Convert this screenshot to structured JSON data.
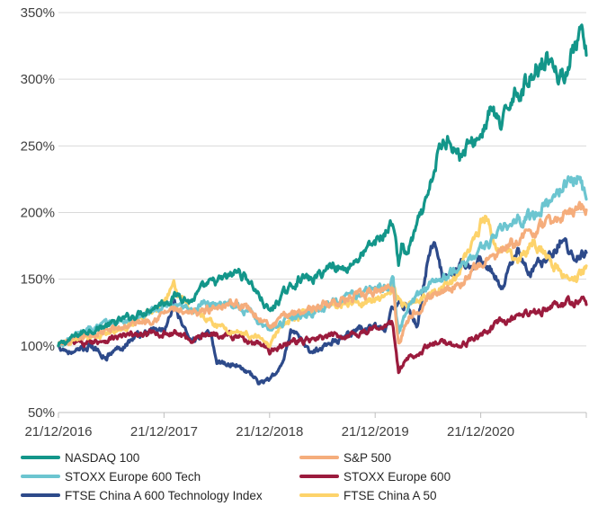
{
  "chart_data": {
    "type": "line",
    "title": "",
    "xlabel": "",
    "ylabel": "",
    "ylim": [
      50,
      350
    ],
    "y_ticks": [
      {
        "value": 50,
        "label": "50%"
      },
      {
        "value": 100,
        "label": "100%"
      },
      {
        "value": 150,
        "label": "150%"
      },
      {
        "value": 200,
        "label": "200%"
      },
      {
        "value": 250,
        "label": "250%"
      },
      {
        "value": 300,
        "label": "300%"
      },
      {
        "value": 350,
        "label": "350%"
      }
    ],
    "x_ticks": [
      "21/12/2016",
      "21/12/2017",
      "21/12/2018",
      "21/12/2019",
      "21/12/2020"
    ],
    "x_end_year": 5.0,
    "grid": "horizontal",
    "legend": "bottom",
    "series": [
      {
        "name": "NASDAQ 100",
        "color": "#13968a",
        "points": [
          [
            0,
            100
          ],
          [
            0.25,
            111
          ],
          [
            0.5,
            116
          ],
          [
            0.75,
            124
          ],
          [
            1.0,
            133
          ],
          [
            1.15,
            139
          ],
          [
            1.25,
            133
          ],
          [
            1.4,
            145
          ],
          [
            1.6,
            151
          ],
          [
            1.7,
            156
          ],
          [
            1.8,
            150
          ],
          [
            1.9,
            138
          ],
          [
            2.0,
            125
          ],
          [
            2.1,
            136
          ],
          [
            2.3,
            152
          ],
          [
            2.4,
            149
          ],
          [
            2.5,
            155
          ],
          [
            2.6,
            162
          ],
          [
            2.7,
            157
          ],
          [
            2.9,
            170
          ],
          [
            3.1,
            185
          ],
          [
            3.17,
            194
          ],
          [
            3.22,
            160
          ],
          [
            3.25,
            176
          ],
          [
            3.3,
            168
          ],
          [
            3.4,
            190
          ],
          [
            3.5,
            210
          ],
          [
            3.6,
            245
          ],
          [
            3.7,
            258
          ],
          [
            3.8,
            243
          ],
          [
            4.0,
            258
          ],
          [
            4.1,
            278
          ],
          [
            4.2,
            262
          ],
          [
            4.3,
            290
          ],
          [
            4.4,
            293
          ],
          [
            4.6,
            318
          ],
          [
            4.7,
            312
          ],
          [
            4.75,
            298
          ],
          [
            4.85,
            316
          ],
          [
            4.95,
            332
          ],
          [
            5.0,
            318
          ]
        ]
      },
      {
        "name": "S&P 500",
        "color": "#f5ad7c",
        "points": [
          [
            0,
            100
          ],
          [
            0.3,
            108
          ],
          [
            0.6,
            114
          ],
          [
            0.9,
            121
          ],
          [
            1.1,
            128
          ],
          [
            1.2,
            122
          ],
          [
            1.4,
            127
          ],
          [
            1.6,
            133
          ],
          [
            1.75,
            131
          ],
          [
            1.95,
            118
          ],
          [
            2.0,
            113
          ],
          [
            2.2,
            125
          ],
          [
            2.4,
            128
          ],
          [
            2.6,
            133
          ],
          [
            2.8,
            136
          ],
          [
            3.0,
            140
          ],
          [
            3.17,
            146
          ],
          [
            3.22,
            100
          ],
          [
            3.3,
            120
          ],
          [
            3.5,
            136
          ],
          [
            3.7,
            145
          ],
          [
            3.8,
            145
          ],
          [
            4.0,
            162
          ],
          [
            4.2,
            170
          ],
          [
            4.4,
            182
          ],
          [
            4.6,
            190
          ],
          [
            4.8,
            198
          ],
          [
            4.95,
            206
          ],
          [
            5.0,
            202
          ]
        ]
      },
      {
        "name": "STOXX Europe 600 Tech",
        "color": "#6cc5d0",
        "points": [
          [
            0,
            100
          ],
          [
            0.25,
            112
          ],
          [
            0.5,
            117
          ],
          [
            0.75,
            121
          ],
          [
            1.0,
            129
          ],
          [
            1.2,
            127
          ],
          [
            1.4,
            131
          ],
          [
            1.6,
            134
          ],
          [
            1.8,
            125
          ],
          [
            2.0,
            112
          ],
          [
            2.2,
            122
          ],
          [
            2.4,
            125
          ],
          [
            2.6,
            133
          ],
          [
            2.9,
            140
          ],
          [
            3.1,
            145
          ],
          [
            3.17,
            148
          ],
          [
            3.22,
            108
          ],
          [
            3.3,
            128
          ],
          [
            3.5,
            146
          ],
          [
            3.7,
            153
          ],
          [
            3.9,
            165
          ],
          [
            4.1,
            180
          ],
          [
            4.3,
            192
          ],
          [
            4.5,
            198
          ],
          [
            4.7,
            212
          ],
          [
            4.85,
            225
          ],
          [
            4.92,
            228
          ],
          [
            5.0,
            210
          ]
        ]
      },
      {
        "name": "STOXX Europe 600",
        "color": "#9b1b3d",
        "points": [
          [
            0,
            100
          ],
          [
            0.3,
            103
          ],
          [
            0.6,
            107
          ],
          [
            0.9,
            109
          ],
          [
            1.1,
            110
          ],
          [
            1.25,
            105
          ],
          [
            1.5,
            110
          ],
          [
            1.7,
            107
          ],
          [
            1.9,
            102
          ],
          [
            2.0,
            96
          ],
          [
            2.2,
            103
          ],
          [
            2.4,
            104
          ],
          [
            2.6,
            107
          ],
          [
            2.8,
            109
          ],
          [
            3.0,
            113
          ],
          [
            3.17,
            116
          ],
          [
            3.22,
            80
          ],
          [
            3.3,
            90
          ],
          [
            3.5,
            100
          ],
          [
            3.7,
            103
          ],
          [
            3.8,
            100
          ],
          [
            4.0,
            108
          ],
          [
            4.2,
            118
          ],
          [
            4.4,
            122
          ],
          [
            4.6,
            128
          ],
          [
            4.8,
            131
          ],
          [
            4.95,
            135
          ],
          [
            5.0,
            131
          ]
        ]
      },
      {
        "name": "FTSE China A 600 Technology  Index",
        "color": "#2d4a8a",
        "points": [
          [
            0,
            100
          ],
          [
            0.15,
            94
          ],
          [
            0.3,
            100
          ],
          [
            0.45,
            92
          ],
          [
            0.6,
            100
          ],
          [
            0.75,
            108
          ],
          [
            0.9,
            112
          ],
          [
            1.0,
            112
          ],
          [
            1.1,
            130
          ],
          [
            1.2,
            110
          ],
          [
            1.3,
            105
          ],
          [
            1.45,
            108
          ],
          [
            1.5,
            88
          ],
          [
            1.7,
            86
          ],
          [
            1.8,
            80
          ],
          [
            1.9,
            72
          ],
          [
            2.0,
            75
          ],
          [
            2.1,
            82
          ],
          [
            2.2,
            112
          ],
          [
            2.3,
            103
          ],
          [
            2.4,
            95
          ],
          [
            2.5,
            100
          ],
          [
            2.65,
            105
          ],
          [
            2.8,
            112
          ],
          [
            3.0,
            115
          ],
          [
            3.1,
            112
          ],
          [
            3.15,
            128
          ],
          [
            3.3,
            130
          ],
          [
            3.4,
            115
          ],
          [
            3.5,
            165
          ],
          [
            3.55,
            178
          ],
          [
            3.65,
            150
          ],
          [
            3.8,
            162
          ],
          [
            4.0,
            165
          ],
          [
            4.1,
            155
          ],
          [
            4.2,
            145
          ],
          [
            4.3,
            160
          ],
          [
            4.35,
            175
          ],
          [
            4.45,
            152
          ],
          [
            4.6,
            165
          ],
          [
            4.75,
            178
          ],
          [
            4.9,
            168
          ],
          [
            5.0,
            170
          ]
        ]
      },
      {
        "name": "FTSE China A 50",
        "color": "#fdd36b",
        "points": [
          [
            0,
            100
          ],
          [
            0.2,
            105
          ],
          [
            0.4,
            108
          ],
          [
            0.6,
            112
          ],
          [
            0.8,
            122
          ],
          [
            1.0,
            132
          ],
          [
            1.1,
            145
          ],
          [
            1.2,
            130
          ],
          [
            1.3,
            125
          ],
          [
            1.45,
            118
          ],
          [
            1.6,
            112
          ],
          [
            1.75,
            110
          ],
          [
            1.9,
            105
          ],
          [
            2.0,
            100
          ],
          [
            2.1,
            115
          ],
          [
            2.3,
            122
          ],
          [
            2.5,
            130
          ],
          [
            2.7,
            132
          ],
          [
            2.9,
            133
          ],
          [
            3.1,
            135
          ],
          [
            3.17,
            145
          ],
          [
            3.25,
            132
          ],
          [
            3.4,
            135
          ],
          [
            3.6,
            140
          ],
          [
            3.8,
            155
          ],
          [
            3.95,
            180
          ],
          [
            4.05,
            200
          ],
          [
            4.15,
            172
          ],
          [
            4.35,
            165
          ],
          [
            4.5,
            180
          ],
          [
            4.6,
            170
          ],
          [
            4.75,
            155
          ],
          [
            4.9,
            152
          ],
          [
            5.0,
            160
          ]
        ]
      }
    ]
  }
}
